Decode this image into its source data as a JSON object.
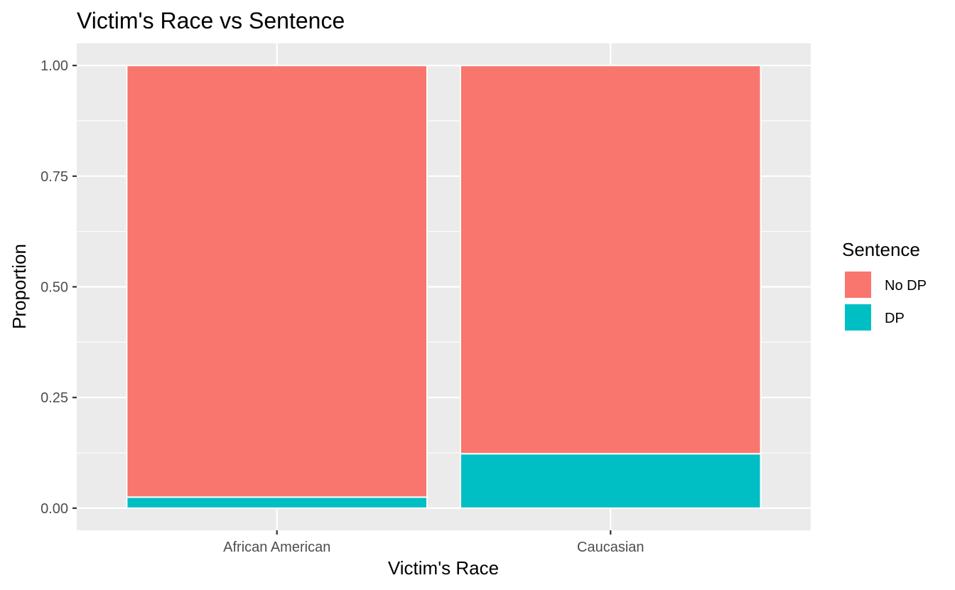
{
  "chart_data": {
    "type": "bar",
    "stacked": true,
    "title": "Victim's Race vs Sentence",
    "xlabel": "Victim's Race",
    "ylabel": "Proportion",
    "categories": [
      "African American",
      "Caucasian"
    ],
    "series": [
      {
        "name": "No DP",
        "color": "#F8766D",
        "values": [
          0.975,
          0.877
        ]
      },
      {
        "name": "DP",
        "color": "#00BFC4",
        "values": [
          0.025,
          0.123
        ]
      }
    ],
    "ylim": [
      -0.05,
      1.05
    ],
    "yticks": [
      0.0,
      0.25,
      0.5,
      0.75,
      1.0
    ],
    "ytick_labels": [
      "0.00",
      "0.25",
      "0.50",
      "0.75",
      "1.00"
    ],
    "grid": true,
    "panel_background": "#EBEBEB",
    "legend": {
      "title": "Sentence",
      "position": "right",
      "entries": [
        "No DP",
        "DP"
      ]
    }
  }
}
